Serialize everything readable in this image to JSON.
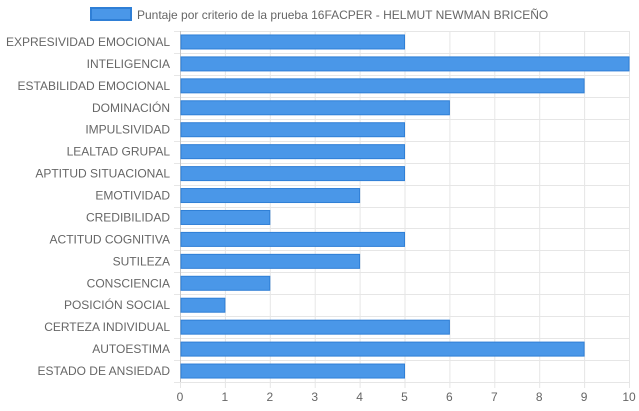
{
  "chart_data": {
    "type": "bar",
    "orientation": "horizontal",
    "title": "",
    "xlabel": "",
    "ylabel": "",
    "categories": [
      "EXPRESIVIDAD EMOCIONAL",
      "INTELIGENCIA",
      "ESTABILIDAD EMOCIONAL",
      "DOMINACIÓN",
      "IMPULSIVIDAD",
      "LEALTAD GRUPAL",
      "APTITUD SITUACIONAL",
      "EMOTIVIDAD",
      "CREDIBILIDAD",
      "ACTITUD COGNITIVA",
      "SUTILEZA",
      "CONSCIENCIA",
      "POSICIÓN SOCIAL",
      "CERTEZA INDIVIDUAL",
      "AUTOESTIMA",
      "ESTADO DE ANSIEDAD"
    ],
    "series": [
      {
        "name": "Puntaje por criterio de la prueba 16FACPER - HELMUT NEWMAN BRICEÑO",
        "color": "#4a97e8",
        "border_color": "#2f7fd6",
        "values": [
          5,
          10,
          9,
          6,
          5,
          5,
          5,
          4,
          2,
          5,
          4,
          2,
          1,
          6,
          9,
          5
        ]
      }
    ],
    "xlim": [
      0,
      10
    ],
    "xticks": [
      "0",
      "1",
      "2",
      "3",
      "4",
      "5",
      "6",
      "7",
      "8",
      "9",
      "10"
    ],
    "grid": true,
    "legend_position": "top"
  }
}
